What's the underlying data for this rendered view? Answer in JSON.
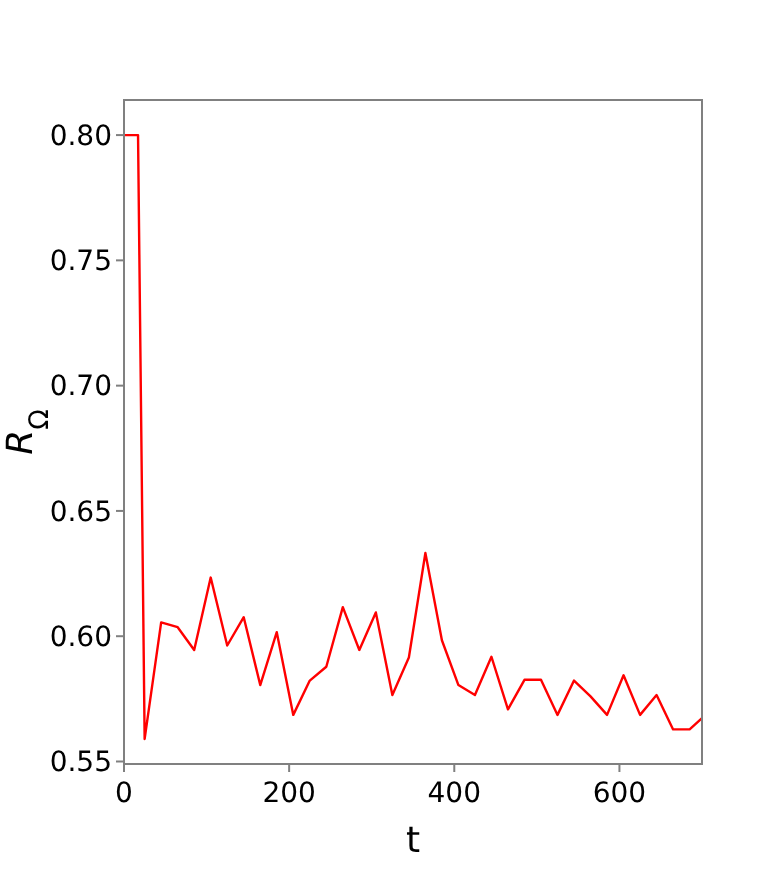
{
  "chart_data": {
    "type": "line",
    "xlabel": "t",
    "ylabel": "R$_{Ω}$",
    "xlim": [
      0,
      700
    ],
    "ylim": [
      0.549,
      0.814
    ],
    "xticks": [
      0,
      200,
      400,
      600
    ],
    "yticks": [
      {
        "value": 0.55,
        "label": "0.55"
      },
      {
        "value": 0.6,
        "label": "0.60"
      },
      {
        "value": 0.65,
        "label": "0.65"
      },
      {
        "value": 0.7,
        "label": "0.70"
      },
      {
        "value": 0.75,
        "label": "0.75"
      },
      {
        "value": 0.8,
        "label": "0.80"
      }
    ],
    "grid": false,
    "marker": "none",
    "line_style": "solid",
    "x": [
      0,
      17,
      25,
      45,
      65,
      85,
      105,
      125,
      145,
      165,
      185,
      205,
      225,
      245,
      265,
      285,
      305,
      325,
      345,
      365,
      385,
      405,
      425,
      445,
      465,
      485,
      505,
      525,
      545,
      565,
      585,
      605,
      625,
      645,
      665,
      685,
      700
    ],
    "series": [
      {
        "color": "#ff0000",
        "values": [
          0.8,
          0.8,
          0.559,
          0.6055,
          0.6036,
          0.5945,
          0.6234,
          0.5963,
          0.6076,
          0.5805,
          0.6016,
          0.5686,
          0.5823,
          0.5878,
          0.6116,
          0.5945,
          0.6095,
          0.5765,
          0.5915,
          0.6332,
          0.5984,
          0.5805,
          0.5765,
          0.5918,
          0.5708,
          0.5826,
          0.5826,
          0.5686,
          0.5823,
          0.576,
          0.5686,
          0.5844,
          0.5686,
          0.5765,
          0.5628,
          0.5628,
          0.5673
        ]
      }
    ]
  }
}
